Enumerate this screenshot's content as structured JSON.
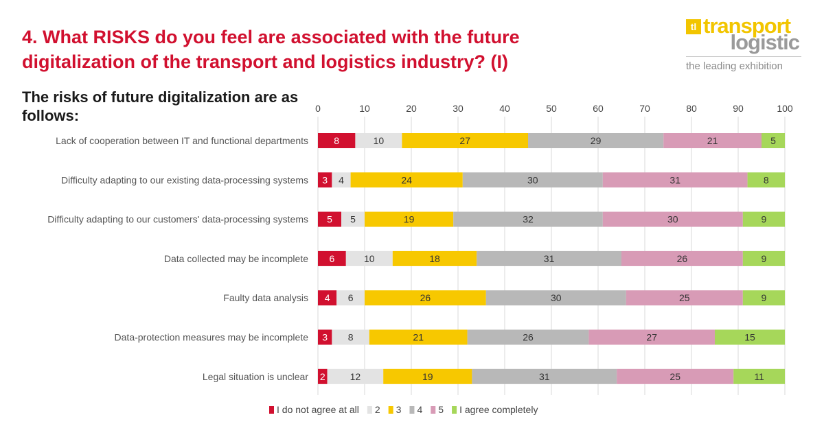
{
  "header": {
    "title_line1": "4. What RISKS do you feel are associated with the future",
    "title_line2": "digitalization of the transport and logistics industry? (I)",
    "subtitle": "The risks of future digitalization are as follows:"
  },
  "logo": {
    "mark": "tl",
    "word1": "transport",
    "word2": "logistic",
    "tagline": "the leading exhibition"
  },
  "chart_data": {
    "type": "bar",
    "orientation": "horizontal",
    "stacked": true,
    "categories": [
      "Lack of cooperation between IT and functional departments",
      "Difficulty adapting to our existing data-processing systems",
      "Difficulty adapting to our customers' data-processing systems",
      "Data collected may be incomplete",
      "Faulty data analysis",
      "Data-protection measures may be incomplete",
      "Legal situation is unclear"
    ],
    "series": [
      {
        "name": "I do not agree at all",
        "color": "#d1102f",
        "label_color": "#ffffff",
        "values": [
          8,
          3,
          5,
          6,
          4,
          3,
          2
        ]
      },
      {
        "name": "2",
        "color": "#e3e3e3",
        "label_color": "#333333",
        "values": [
          10,
          4,
          5,
          10,
          6,
          8,
          12
        ]
      },
      {
        "name": "3",
        "color": "#f7c800",
        "label_color": "#333333",
        "values": [
          27,
          24,
          19,
          18,
          26,
          21,
          19
        ]
      },
      {
        "name": "4",
        "color": "#b8b8b8",
        "label_color": "#333333",
        "values": [
          29,
          30,
          32,
          31,
          30,
          26,
          31
        ]
      },
      {
        "name": "5",
        "color": "#d89bb6",
        "label_color": "#333333",
        "values": [
          21,
          31,
          30,
          26,
          25,
          27,
          25
        ]
      },
      {
        "name": "I agree completely",
        "color": "#a6d75a",
        "label_color": "#333333",
        "values": [
          5,
          8,
          9,
          9,
          9,
          15,
          11
        ]
      }
    ],
    "xlim": [
      0,
      100
    ],
    "xticks": [
      0,
      10,
      20,
      30,
      40,
      50,
      60,
      70,
      80,
      90,
      100
    ],
    "grid": true,
    "legend_position": "bottom"
  }
}
